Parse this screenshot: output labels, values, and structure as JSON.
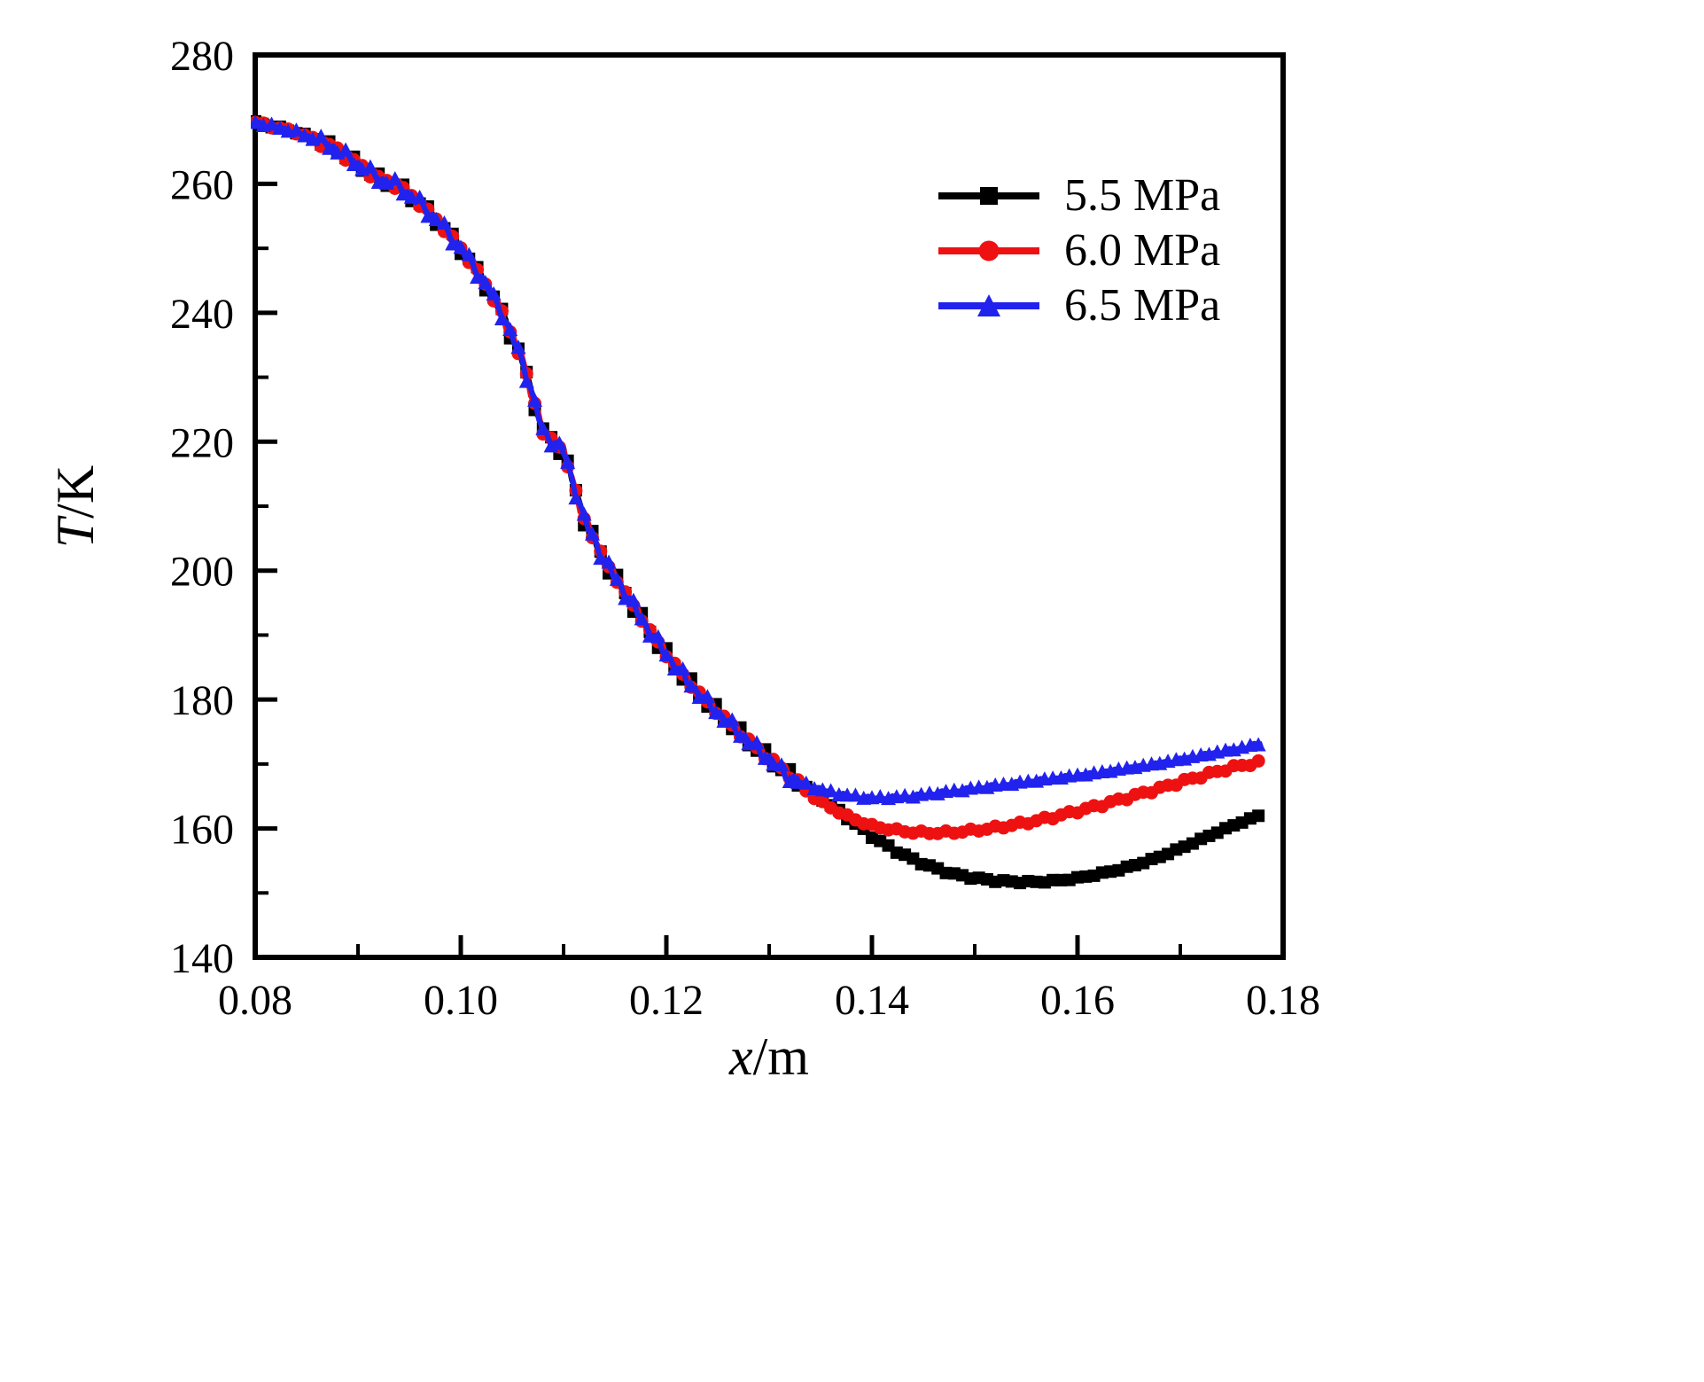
{
  "figure": {
    "background": "#ffffff"
  },
  "chart_data": {
    "type": "line",
    "title": "",
    "xlabel_italic": "x",
    "xlabel_rest": "/m",
    "ylabel_italic": "T",
    "ylabel_rest": "/K",
    "xlim": [
      0.08,
      0.18
    ],
    "ylim": [
      140,
      280
    ],
    "xticks": [
      0.08,
      0.1,
      0.12,
      0.14,
      0.16,
      0.18
    ],
    "yticks": [
      140,
      160,
      180,
      200,
      220,
      240,
      260,
      280
    ],
    "x_minor_step": 0.01,
    "y_minor_step": 10,
    "grid": false,
    "legend_position": "upper-right-inside",
    "series": [
      {
        "name": "5.5 MPa",
        "color": "#000000",
        "marker": "square",
        "x": [
          0.08,
          0.082,
          0.084,
          0.086,
          0.088,
          0.09,
          0.092,
          0.094,
          0.096,
          0.098,
          0.1,
          0.102,
          0.104,
          0.106,
          0.108,
          0.11,
          0.112,
          0.114,
          0.116,
          0.118,
          0.12,
          0.122,
          0.124,
          0.126,
          0.128,
          0.13,
          0.132,
          0.134,
          0.136,
          0.138,
          0.14,
          0.142,
          0.144,
          0.146,
          0.148,
          0.15,
          0.152,
          0.154,
          0.156,
          0.158,
          0.16,
          0.162,
          0.164,
          0.166,
          0.168,
          0.17,
          0.172,
          0.174,
          0.176,
          0.178
        ],
        "values": [
          269.5,
          268.8,
          268.0,
          266.8,
          265.2,
          263.0,
          260.8,
          259.6,
          257.0,
          253.8,
          250.0,
          245.5,
          240.0,
          232.5,
          221.5,
          218.5,
          208.0,
          201.5,
          196.5,
          191.5,
          187.0,
          183.0,
          179.5,
          176.5,
          173.5,
          170.8,
          168.3,
          166.0,
          163.6,
          161.2,
          158.8,
          156.8,
          155.2,
          153.9,
          152.9,
          152.3,
          151.9,
          151.7,
          151.7,
          151.9,
          152.3,
          152.9,
          153.6,
          154.5,
          155.6,
          156.9,
          158.3,
          159.7,
          161.0,
          162.2
        ]
      },
      {
        "name": "6.0 MPa",
        "color": "#ee1111",
        "marker": "circle",
        "x": [
          0.08,
          0.082,
          0.084,
          0.086,
          0.088,
          0.09,
          0.092,
          0.094,
          0.096,
          0.098,
          0.1,
          0.102,
          0.104,
          0.106,
          0.108,
          0.11,
          0.112,
          0.114,
          0.116,
          0.118,
          0.12,
          0.122,
          0.124,
          0.126,
          0.128,
          0.13,
          0.132,
          0.134,
          0.136,
          0.138,
          0.14,
          0.142,
          0.144,
          0.146,
          0.148,
          0.15,
          0.152,
          0.154,
          0.156,
          0.158,
          0.16,
          0.162,
          0.164,
          0.166,
          0.168,
          0.17,
          0.172,
          0.174,
          0.176,
          0.178
        ],
        "values": [
          269.5,
          268.8,
          268.0,
          266.8,
          265.2,
          263.0,
          260.8,
          259.6,
          257.0,
          253.8,
          250.0,
          245.5,
          240.0,
          232.5,
          221.5,
          218.5,
          208.0,
          201.5,
          196.5,
          191.5,
          187.0,
          183.0,
          179.5,
          176.5,
          173.5,
          170.8,
          168.3,
          165.2,
          163.2,
          161.6,
          160.4,
          159.8,
          159.4,
          159.3,
          159.4,
          159.7,
          160.1,
          160.6,
          161.2,
          161.9,
          162.7,
          163.5,
          164.4,
          165.3,
          166.2,
          167.2,
          168.1,
          169.0,
          169.8,
          170.3
        ]
      },
      {
        "name": "6.5 MPa",
        "color": "#2222ee",
        "marker": "triangle",
        "x": [
          0.08,
          0.082,
          0.084,
          0.086,
          0.088,
          0.09,
          0.092,
          0.094,
          0.096,
          0.098,
          0.1,
          0.102,
          0.104,
          0.106,
          0.108,
          0.11,
          0.112,
          0.114,
          0.116,
          0.118,
          0.12,
          0.122,
          0.124,
          0.126,
          0.128,
          0.13,
          0.132,
          0.134,
          0.136,
          0.138,
          0.14,
          0.142,
          0.144,
          0.146,
          0.148,
          0.15,
          0.152,
          0.154,
          0.156,
          0.158,
          0.16,
          0.162,
          0.164,
          0.166,
          0.168,
          0.17,
          0.172,
          0.174,
          0.176,
          0.178
        ],
        "values": [
          269.5,
          268.8,
          268.0,
          266.8,
          265.2,
          263.0,
          260.8,
          259.6,
          257.0,
          253.8,
          250.0,
          245.5,
          240.0,
          232.5,
          221.5,
          218.5,
          208.0,
          201.5,
          196.5,
          191.5,
          187.0,
          183.0,
          179.5,
          176.5,
          173.5,
          170.8,
          167.8,
          166.5,
          165.6,
          165.0,
          164.7,
          164.8,
          165.0,
          165.4,
          165.8,
          166.2,
          166.6,
          167.0,
          167.4,
          167.8,
          168.2,
          168.6,
          169.1,
          169.6,
          170.1,
          170.7,
          171.3,
          171.9,
          172.5,
          173.2
        ]
      }
    ]
  }
}
